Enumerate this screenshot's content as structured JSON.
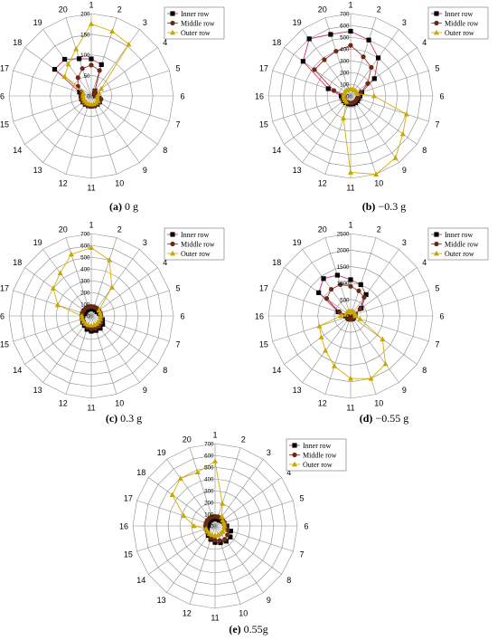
{
  "figure": {
    "inner_label": "Inner row",
    "middle_label": "Middle row",
    "outer_label": "Outer row",
    "colors": {
      "inner": "#000000",
      "middle": "#6b2a10",
      "outer": "#c8a800",
      "inner_line": "#d0306a",
      "middle_line": "#b03040",
      "outer_line": "#d4b000",
      "grid": "#8c8c8c"
    }
  },
  "chart_data": [
    {
      "type": "radar",
      "panel": "(a)",
      "caption": "0 g",
      "categories": [
        "1",
        "2",
        "3",
        "4",
        "5",
        "6",
        "7",
        "8",
        "9",
        "10",
        "11",
        "12",
        "13",
        "14",
        "15",
        "16",
        "17",
        "18",
        "19",
        "20"
      ],
      "rlim": [
        0,
        200
      ],
      "ticks": [
        "0",
        "50",
        "100",
        "150",
        "200"
      ],
      "tick_values": [
        0,
        50,
        100,
        150,
        200
      ],
      "series": [
        {
          "name": "Inner row",
          "values": [
            90,
            80,
            15,
            10,
            10,
            10,
            20,
            25,
            25,
            25,
            25,
            25,
            25,
            25,
            25,
            25,
            30,
            110,
            110,
            95
          ]
        },
        {
          "name": "Middle row",
          "values": [
            75,
            65,
            15,
            10,
            10,
            10,
            25,
            25,
            25,
            25,
            25,
            25,
            25,
            25,
            25,
            25,
            25,
            40,
            55,
            70
          ]
        },
        {
          "name": "Outer row",
          "values": [
            175,
            165,
            155,
            30,
            20,
            15,
            15,
            20,
            20,
            20,
            20,
            20,
            20,
            20,
            20,
            20,
            20,
            80,
            95,
            120
          ]
        }
      ]
    },
    {
      "type": "radar",
      "panel": "(b)",
      "caption": "−0.3 g",
      "categories": [
        "1",
        "2",
        "3",
        "4",
        "5",
        "6",
        "7",
        "8",
        "9",
        "10",
        "11",
        "12",
        "13",
        "14",
        "15",
        "16",
        "17",
        "18",
        "19",
        "20"
      ],
      "rlim": [
        0,
        700
      ],
      "ticks": [
        "0",
        "100",
        "200",
        "300",
        "400",
        "500",
        "600",
        "700"
      ],
      "tick_values": [
        0,
        100,
        200,
        300,
        400,
        500,
        600,
        700
      ],
      "series": [
        {
          "name": "Inner row",
          "values": [
            550,
            500,
            400,
            250,
            100,
            80,
            70,
            70,
            70,
            70,
            70,
            70,
            70,
            70,
            70,
            80,
            200,
            500,
            600,
            550
          ]
        },
        {
          "name": "Middle row",
          "values": [
            430,
            350,
            300,
            180,
            90,
            70,
            60,
            60,
            60,
            60,
            60,
            60,
            60,
            60,
            60,
            60,
            150,
            380,
            380,
            400
          ]
        },
        {
          "name": "Outer row",
          "values": [
            60,
            60,
            60,
            60,
            60,
            200,
            500,
            550,
            650,
            700,
            650,
            200,
            60,
            60,
            60,
            60,
            60,
            60,
            60,
            60
          ]
        }
      ]
    },
    {
      "type": "radar",
      "panel": "(c)",
      "caption": "0.3 g",
      "categories": [
        "1",
        "2",
        "3",
        "4",
        "5",
        "6",
        "7",
        "8",
        "9",
        "10",
        "11",
        "12",
        "13",
        "14",
        "15",
        "16",
        "17",
        "18",
        "19",
        "20"
      ],
      "rlim": [
        0,
        700
      ],
      "ticks": [
        "0",
        "100",
        "200",
        "300",
        "400",
        "500",
        "600",
        "700"
      ],
      "tick_values": [
        0,
        100,
        200,
        300,
        400,
        500,
        600,
        700
      ],
      "series": [
        {
          "name": "Inner row",
          "values": [
            60,
            60,
            60,
            60,
            70,
            80,
            100,
            120,
            130,
            130,
            130,
            120,
            100,
            90,
            80,
            70,
            60,
            60,
            60,
            60
          ]
        },
        {
          "name": "Middle row",
          "values": [
            80,
            80,
            80,
            80,
            80,
            80,
            90,
            100,
            110,
            110,
            110,
            100,
            90,
            80,
            80,
            80,
            80,
            80,
            80,
            80
          ]
        },
        {
          "name": "Outer row",
          "values": [
            580,
            500,
            300,
            80,
            80,
            80,
            80,
            80,
            80,
            80,
            80,
            80,
            80,
            80,
            80,
            80,
            300,
            400,
            450,
            550
          ]
        }
      ]
    },
    {
      "type": "radar",
      "panel": "(d)",
      "caption": "−0.55 g",
      "categories": [
        "1",
        "2",
        "3",
        "4",
        "5",
        "6",
        "7",
        "8",
        "9",
        "10",
        "11",
        "12",
        "13",
        "14",
        "15",
        "16",
        "17",
        "18",
        "19",
        "20"
      ],
      "rlim": [
        0,
        2500
      ],
      "ticks": [
        "0",
        "500",
        "1000",
        "1500",
        "2000",
        "2500"
      ],
      "tick_values": [
        0,
        500,
        1000,
        1500,
        2000,
        2500
      ],
      "series": [
        {
          "name": "Inner row",
          "values": [
            1100,
            1000,
            800,
            400,
            150,
            100,
            100,
            100,
            100,
            100,
            100,
            100,
            100,
            100,
            100,
            150,
            400,
            1200,
            1400,
            1300
          ]
        },
        {
          "name": "Middle row",
          "values": [
            900,
            800,
            700,
            350,
            150,
            100,
            100,
            100,
            100,
            100,
            100,
            100,
            100,
            100,
            100,
            120,
            350,
            900,
            1000,
            1000
          ]
        },
        {
          "name": "Outer row",
          "values": [
            150,
            150,
            150,
            150,
            150,
            150,
            300,
            1200,
            1800,
            2000,
            1900,
            1600,
            1300,
            1100,
            1000,
            300,
            150,
            150,
            150,
            150
          ]
        }
      ]
    },
    {
      "type": "radar",
      "panel": "(e)",
      "caption": "0.55g",
      "categories": [
        "1",
        "2",
        "3",
        "4",
        "5",
        "6",
        "7",
        "8",
        "9",
        "10",
        "11",
        "12",
        "13",
        "14",
        "15",
        "16",
        "17",
        "18",
        "19",
        "20"
      ],
      "rlim": [
        0,
        700
      ],
      "ticks": [
        "0",
        "100",
        "200",
        "300",
        "400",
        "500",
        "600",
        "700"
      ],
      "tick_values": [
        0,
        100,
        200,
        300,
        400,
        500,
        600,
        700
      ],
      "series": [
        {
          "name": "Inner row",
          "values": [
            60,
            60,
            60,
            70,
            80,
            100,
            140,
            160,
            160,
            150,
            140,
            120,
            100,
            80,
            70,
            60,
            60,
            60,
            60,
            60
          ]
        },
        {
          "name": "Middle row",
          "values": [
            80,
            80,
            80,
            80,
            80,
            90,
            110,
            130,
            140,
            130,
            120,
            110,
            90,
            80,
            80,
            80,
            80,
            80,
            80,
            80
          ]
        },
        {
          "name": "Outer row",
          "values": [
            550,
            200,
            100,
            80,
            80,
            80,
            80,
            80,
            80,
            80,
            80,
            80,
            80,
            80,
            80,
            180,
            280,
            450,
            500,
            480
          ]
        }
      ]
    }
  ]
}
